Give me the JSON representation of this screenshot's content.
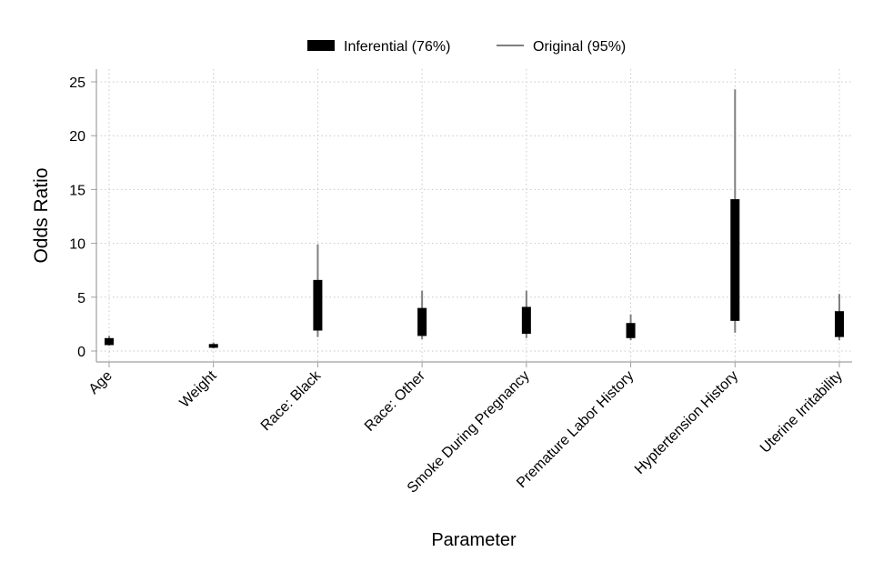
{
  "chart_data": {
    "type": "range",
    "xlabel": "Parameter",
    "ylabel": "Odds Ratio",
    "ylim": [
      -1,
      26
    ],
    "yticks": [
      0,
      5,
      10,
      15,
      20,
      25
    ],
    "grid": true,
    "legend_position": "top",
    "categories": [
      "Age",
      "Weight",
      "Race: Black",
      "Race: Other",
      "Smoke During Pregnancy",
      "Premature Labor History",
      "Hyptertension History",
      "Uterine Irritability"
    ],
    "series": [
      {
        "name": "Inferential (76%)",
        "color": "#000000",
        "low": [
          0.55,
          0.3,
          1.9,
          1.4,
          1.6,
          1.2,
          2.8,
          1.3
        ],
        "high": [
          1.2,
          0.65,
          6.6,
          4.0,
          4.1,
          2.6,
          14.1,
          3.7
        ]
      },
      {
        "name": "Original (95%)",
        "color": "#7f7f7f",
        "low": [
          0.5,
          0.25,
          1.3,
          1.1,
          1.2,
          1.0,
          1.7,
          1.0
        ],
        "high": [
          1.4,
          0.8,
          9.9,
          5.6,
          5.6,
          3.4,
          24.3,
          5.3
        ]
      }
    ]
  }
}
